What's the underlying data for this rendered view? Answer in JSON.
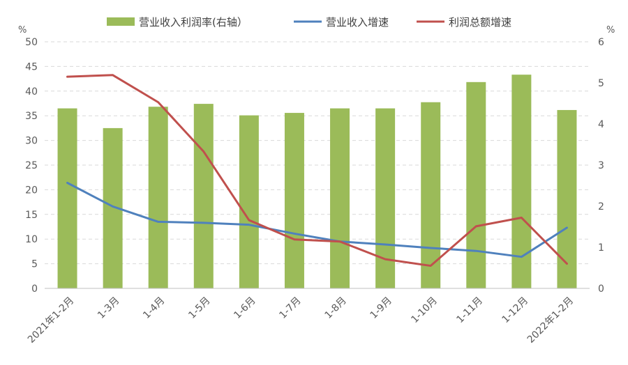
{
  "chart_data": {
    "type": "bar",
    "categories": [
      "2021年1-2月",
      "1-3月",
      "1-4月",
      "1-5月",
      "1-6月",
      "1-7月",
      "1-8月",
      "1-9月",
      "1-10月",
      "1-11月",
      "1-12月",
      "2022年1-2月"
    ],
    "y_left": {
      "unit": "%",
      "range": [
        0,
        50
      ],
      "ticks": [
        0,
        5,
        10,
        15,
        20,
        25,
        30,
        35,
        40,
        45,
        50
      ]
    },
    "y_right": {
      "unit": "%",
      "range": [
        0,
        6
      ],
      "ticks": [
        0,
        1,
        2,
        3,
        4,
        5,
        6
      ]
    },
    "grid": "horizontal dashed",
    "legend_position": "top",
    "series": [
      {
        "name": "营业收入利润率(右轴）",
        "type": "bar",
        "axis": "right",
        "color": "#9bbb59",
        "values": [
          4.38,
          3.9,
          4.42,
          4.49,
          4.21,
          4.27,
          4.38,
          4.38,
          4.53,
          5.02,
          5.2,
          4.34
        ]
      },
      {
        "name": "营业收入增速",
        "type": "line",
        "axis": "left",
        "color": "#4f81bd",
        "values": [
          21.4,
          16.6,
          13.5,
          13.3,
          12.9,
          11.1,
          9.5,
          8.9,
          8.2,
          7.6,
          6.4,
          12.3
        ]
      },
      {
        "name": "利润总额增速",
        "type": "line",
        "axis": "right",
        "color": "#c0504d",
        "values": [
          5.15,
          5.19,
          4.53,
          3.33,
          1.66,
          1.19,
          1.14,
          0.71,
          0.55,
          1.51,
          1.72,
          0.6
        ]
      }
    ]
  }
}
